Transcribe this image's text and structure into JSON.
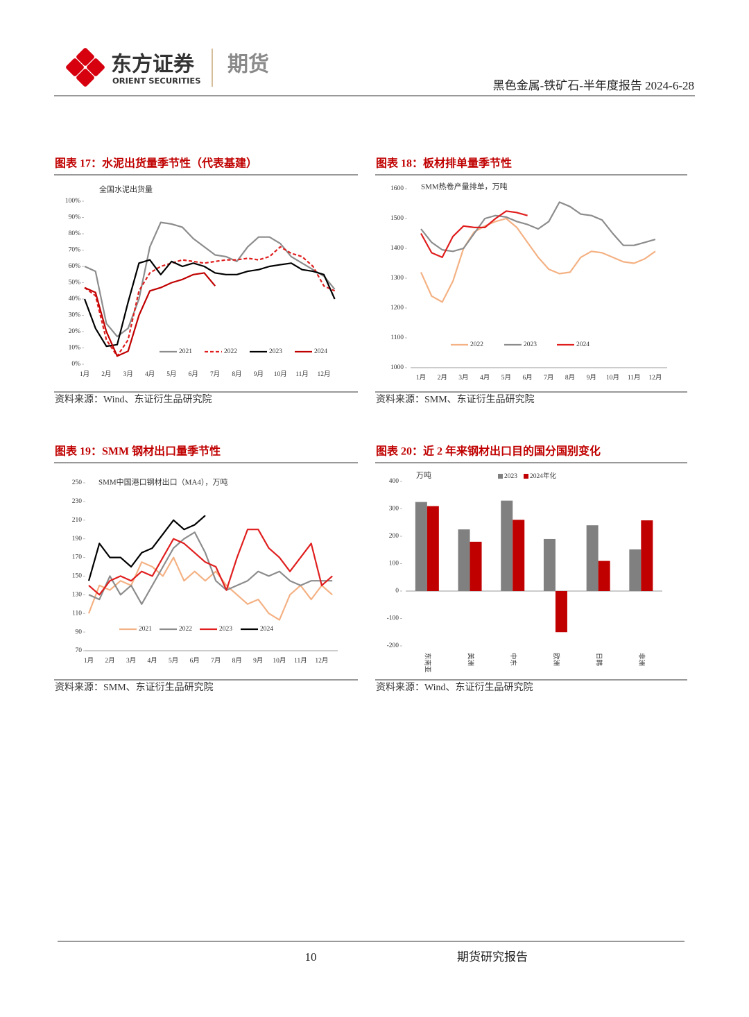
{
  "header": {
    "logo_cn": "东方证券",
    "logo_en": "ORIENT SECURITIES",
    "division": "期货",
    "report": "黑色金属-铁矿石-半年度报告 2024-6-28"
  },
  "chart_data": [
    {
      "type": "line",
      "figure": "图表 17：水泥出货量季节性（代表基建）",
      "subtitle": "全国水泥出货量",
      "source": "资料来源：Wind、东证衍生品研究院",
      "categories": [
        "1月",
        null,
        "2月",
        null,
        "3月",
        null,
        "4月",
        null,
        "5月",
        null,
        "6月",
        null,
        "7月",
        null,
        "8月",
        null,
        "9月",
        null,
        "10月",
        null,
        "11月",
        null,
        "12月",
        null
      ],
      "ylim": [
        0,
        100
      ],
      "yticks": [
        {
          "value": 0,
          "label": "0%"
        },
        {
          "value": 10,
          "label": "10%"
        },
        {
          "value": 20,
          "label": "20%"
        },
        {
          "value": 30,
          "label": "30%"
        },
        {
          "value": 40,
          "label": "40%"
        },
        {
          "value": 50,
          "label": "50%"
        },
        {
          "value": 60,
          "label": "60%"
        },
        {
          "value": 70,
          "label": "70%"
        },
        {
          "value": 80,
          "label": "80%"
        },
        {
          "value": 90,
          "label": "90%"
        },
        {
          "value": 100,
          "label": "100%"
        }
      ],
      "series": [
        {
          "name": "2021",
          "color": "#8c8c8c",
          "values": [
            60,
            57,
            25,
            17,
            22,
            40,
            72,
            87,
            86,
            84,
            77,
            72,
            67,
            66,
            63,
            72,
            78,
            78,
            74,
            66,
            62,
            58,
            54,
            46
          ]
        },
        {
          "name": "2022",
          "color": "#e01e1e",
          "dash": true,
          "values": [
            47,
            42,
            15,
            5,
            15,
            45,
            56,
            60,
            62,
            64,
            63,
            62,
            63,
            64,
            64,
            65,
            64,
            66,
            72,
            68,
            66,
            60,
            48,
            45
          ]
        },
        {
          "name": "2023",
          "color": "#000000",
          "values": [
            40,
            22,
            11,
            12,
            38,
            62,
            64,
            55,
            63,
            60,
            62,
            60,
            56,
            55,
            55,
            57,
            58,
            60,
            61,
            62,
            58,
            57,
            55,
            40
          ]
        },
        {
          "name": "2024",
          "color": "#c00000",
          "values": [
            47,
            44,
            20,
            5,
            8,
            30,
            45,
            47,
            50,
            52,
            55,
            56,
            48,
            null,
            null,
            null,
            null,
            null,
            null,
            null,
            null,
            null,
            null,
            null
          ]
        }
      ]
    },
    {
      "type": "line",
      "figure": "图表 18：板材排单量季节性",
      "subtitle": "SMM热卷产量排单，万吨",
      "source": "资料来源：SMM、东证衍生品研究院",
      "categories": [
        "1月",
        null,
        "2月",
        null,
        "3月",
        null,
        "4月",
        null,
        "5月",
        null,
        "6月",
        null,
        "7月",
        null,
        "8月",
        null,
        "9月",
        null,
        "10月",
        null,
        "11月",
        null,
        "12月"
      ],
      "ylim": [
        1000,
        1600
      ],
      "yticks": [
        1000,
        1100,
        1200,
        1300,
        1400,
        1500,
        1600
      ],
      "series": [
        {
          "name": "2022",
          "color": "#f4b183",
          "values": [
            1320,
            1240,
            1220,
            1290,
            1400,
            1455,
            1475,
            1490,
            1500,
            1470,
            1420,
            1370,
            1330,
            1315,
            1320,
            1370,
            1390,
            1385,
            1370,
            1355,
            1350,
            1365,
            1390
          ]
        },
        {
          "name": "2023",
          "color": "#8c8c8c",
          "values": [
            1465,
            1420,
            1395,
            1390,
            1400,
            1450,
            1500,
            1510,
            1505,
            1490,
            1480,
            1465,
            1490,
            1555,
            1540,
            1515,
            1510,
            1495,
            1450,
            1410,
            1410,
            1420,
            1430
          ]
        },
        {
          "name": "2024",
          "color": "#e01e1e",
          "values": [
            1450,
            1385,
            1370,
            1440,
            1475,
            1470,
            1470,
            1500,
            1525,
            1520,
            1510,
            null,
            null,
            null,
            null,
            null,
            null,
            null,
            null,
            null,
            null,
            null,
            null
          ]
        }
      ]
    },
    {
      "type": "line",
      "figure": "图表 19：SMM 钢材出口量季节性",
      "subtitle": "SMM中国港口钢材出口（MA4），万吨",
      "source": "资料来源：SMM、东证衍生品研究院",
      "categories": [
        "1月",
        null,
        "2月",
        null,
        "3月",
        null,
        "4月",
        null,
        "5月",
        null,
        "6月",
        null,
        "7月",
        null,
        "8月",
        null,
        "9月",
        null,
        "10月",
        null,
        "11月",
        null,
        "12月",
        null
      ],
      "ylim": [
        70,
        250
      ],
      "yticks": [
        70,
        90,
        110,
        130,
        150,
        170,
        190,
        210,
        230,
        250
      ],
      "series": [
        {
          "name": "2021",
          "color": "#f4b183",
          "values": [
            110,
            140,
            135,
            145,
            140,
            165,
            160,
            150,
            170,
            145,
            155,
            145,
            155,
            140,
            130,
            120,
            125,
            110,
            103,
            130,
            140,
            125,
            140,
            130
          ]
        },
        {
          "name": "2022",
          "color": "#8c8c8c",
          "values": [
            130,
            125,
            150,
            130,
            140,
            120,
            140,
            160,
            180,
            190,
            197,
            175,
            145,
            135,
            140,
            145,
            155,
            150,
            155,
            145,
            140,
            145,
            145,
            145
          ]
        },
        {
          "name": "2023",
          "color": "#e01e1e",
          "values": [
            140,
            130,
            145,
            150,
            145,
            155,
            150,
            170,
            190,
            185,
            175,
            165,
            160,
            135,
            170,
            200,
            200,
            180,
            170,
            155,
            170,
            185,
            140,
            150
          ]
        },
        {
          "name": "2024",
          "color": "#000000",
          "values": [
            145,
            185,
            170,
            170,
            160,
            175,
            180,
            195,
            210,
            200,
            205,
            215,
            null,
            null,
            null,
            null,
            null,
            null,
            null,
            null,
            null,
            null,
            null,
            null
          ]
        }
      ]
    },
    {
      "type": "bar",
      "figure": "图表 20：近 2 年来钢材出口目的国分国别变化",
      "subtitle": "万吨",
      "source": "资料来源：Wind、东证衍生品研究院",
      "categories": [
        "东南亚",
        "美洲",
        "中东",
        "欧洲",
        "日韩",
        "非洲"
      ],
      "ylim": [
        -200,
        400
      ],
      "yticks": [
        -200,
        -100,
        0,
        100,
        200,
        300,
        400
      ],
      "series": [
        {
          "name": "2023",
          "color": "#808080",
          "values": [
            325,
            225,
            330,
            190,
            240,
            152
          ]
        },
        {
          "name": "2024年化",
          "color": "#c00000",
          "values": [
            310,
            180,
            260,
            -150,
            110,
            258
          ]
        }
      ]
    }
  ],
  "footer": {
    "page": "10",
    "label": "期货研究报告"
  }
}
